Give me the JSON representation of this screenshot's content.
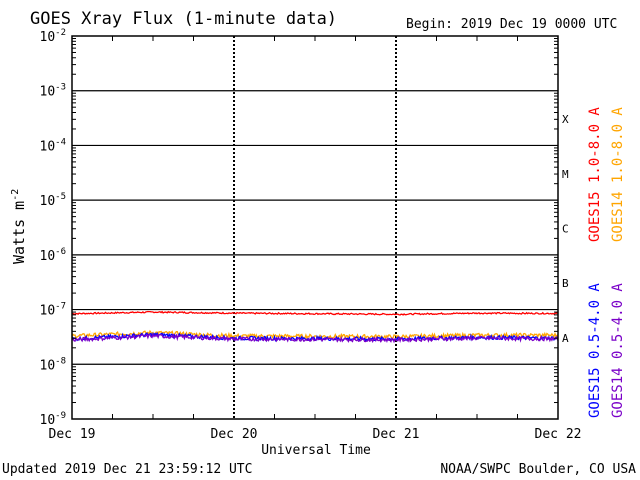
{
  "chart_data": {
    "type": "line",
    "title": "GOES Xray Flux (1-minute data)",
    "begin_label": "Begin:  2019 Dec 19 0000 UTC",
    "xlabel": "Universal Time",
    "ylabel": "Watts m",
    "ylabel_sup": "-2",
    "y_scale": "log",
    "ylim": [
      1e-09,
      0.01
    ],
    "y_ticks": [
      {
        "base": "10",
        "exp": "-2"
      },
      {
        "base": "10",
        "exp": "-3"
      },
      {
        "base": "10",
        "exp": "-4"
      },
      {
        "base": "10",
        "exp": "-5"
      },
      {
        "base": "10",
        "exp": "-6"
      },
      {
        "base": "10",
        "exp": "-7"
      },
      {
        "base": "10",
        "exp": "-8"
      },
      {
        "base": "10",
        "exp": "-9"
      }
    ],
    "x_ticks": [
      "Dec 19",
      "Dec 20",
      "Dec 21",
      "Dec 22"
    ],
    "xlim_days": [
      "2019-12-19",
      "2019-12-22"
    ],
    "flare_classes": [
      "X",
      "M",
      "C",
      "B",
      "A"
    ],
    "grid": "horizontal lines at each decade; dashed vertical lines at day boundaries",
    "legend_placement": "right, vertical text",
    "series": [
      {
        "name": "GOES15 1.0-8.0 A",
        "color": "#ff0000",
        "level": 8.5e-08,
        "points": [
          [
            "2019-12-19T00:00",
            8.4e-08
          ],
          [
            "2019-12-19T12:00",
            9e-08
          ],
          [
            "2019-12-20T00:00",
            8.6e-08
          ],
          [
            "2019-12-21T00:00",
            8.2e-08
          ],
          [
            "2019-12-21T12:00",
            8.6e-08
          ],
          [
            "2019-12-22T00:00",
            8.5e-08
          ]
        ]
      },
      {
        "name": "GOES14 1.0-8.0 A",
        "color": "#ffa500",
        "level": 3.4e-08,
        "points": [
          [
            "2019-12-19T00:00",
            3.3e-08
          ],
          [
            "2019-12-19T12:00",
            3.8e-08
          ],
          [
            "2019-12-20T00:00",
            3.3e-08
          ],
          [
            "2019-12-21T00:00",
            3.2e-08
          ],
          [
            "2019-12-21T12:00",
            3.4e-08
          ],
          [
            "2019-12-22T00:00",
            3.4e-08
          ]
        ]
      },
      {
        "name": "GOES15 0.5-4.0 A",
        "color": "#0000ff",
        "level": 3e-08,
        "points": [
          [
            "2019-12-19T00:00",
            2.9e-08
          ],
          [
            "2019-12-19T12:00",
            3.5e-08
          ],
          [
            "2019-12-20T00:00",
            3e-08
          ],
          [
            "2019-12-21T00:00",
            2.9e-08
          ],
          [
            "2019-12-21T12:00",
            3.1e-08
          ],
          [
            "2019-12-22T00:00",
            3e-08
          ]
        ]
      },
      {
        "name": "GOES14 0.5-4.0 A",
        "color": "#7a00c8",
        "level": 2.9e-08,
        "points": [
          [
            "2019-12-19T00:00",
            2.8e-08
          ],
          [
            "2019-12-19T12:00",
            3.3e-08
          ],
          [
            "2019-12-20T00:00",
            2.9e-08
          ],
          [
            "2019-12-21T00:00",
            2.8e-08
          ],
          [
            "2019-12-21T12:00",
            3e-08
          ],
          [
            "2019-12-22T00:00",
            2.9e-08
          ]
        ]
      }
    ]
  },
  "footer": {
    "updated": "Updated 2019 Dec 21 23:59:12 UTC",
    "credit": "NOAA/SWPC Boulder, CO USA"
  }
}
